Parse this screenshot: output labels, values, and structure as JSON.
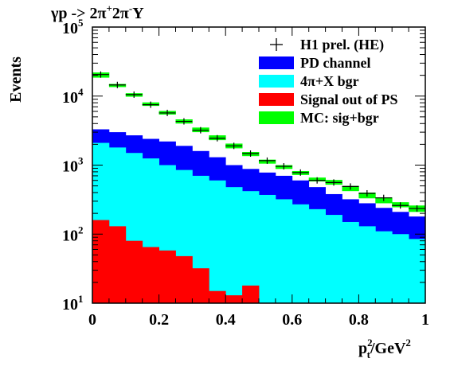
{
  "chart_data": {
    "type": "histogram",
    "title": "γp -> 2π⁺2π⁻Y",
    "title_parts": {
      "gp": "γp -> 2π",
      "sup1": "+",
      "mid": "2π",
      "sup2": "-",
      "end": "Y"
    },
    "xlabel": {
      "base": "p",
      "sub": "t",
      "sup": "2",
      "rest": "/GeV",
      "sup2": "2"
    },
    "ylabel": "Events",
    "xlim": [
      0,
      1
    ],
    "ylim": [
      10,
      100000
    ],
    "yscale": "log",
    "x_ticks": [
      "0",
      "0.2",
      "0.4",
      "0.6",
      "0.8",
      "1"
    ],
    "x_tick_values": [
      0,
      0.2,
      0.4,
      0.6,
      0.8,
      1
    ],
    "y_ticks": [
      {
        "base": "10",
        "exp": "1",
        "value": 10
      },
      {
        "base": "10",
        "exp": "2",
        "value": 100
      },
      {
        "base": "10",
        "exp": "3",
        "value": 1000
      },
      {
        "base": "10",
        "exp": "4",
        "value": 10000
      },
      {
        "base": "10",
        "exp": "5",
        "value": 100000
      }
    ],
    "bin_edges": [
      0,
      0.05,
      0.1,
      0.15,
      0.2,
      0.25,
      0.3,
      0.35,
      0.4,
      0.45,
      0.5,
      0.55,
      0.6,
      0.65,
      0.7,
      0.75,
      0.8,
      0.85,
      0.9,
      0.95,
      1.0
    ],
    "series": [
      {
        "name": "MC: sig+bgr",
        "color": "#00ff00",
        "kind": "band",
        "low": [
          18500,
          13500,
          9800,
          7200,
          5400,
          4000,
          3000,
          2300,
          1750,
          1350,
          1050,
          880,
          720,
          580,
          520,
          420,
          330,
          280,
          245,
          210
        ],
        "high": [
          22000,
          15000,
          11000,
          8100,
          6100,
          4600,
          3500,
          2700,
          2050,
          1550,
          1200,
          1000,
          820,
          660,
          610,
          500,
          400,
          340,
          290,
          260
        ]
      },
      {
        "name": "PD channel",
        "color": "#0000ff",
        "kind": "fill",
        "values": [
          3300,
          3000,
          2700,
          2400,
          2200,
          1900,
          1600,
          1300,
          1000,
          880,
          780,
          700,
          600,
          480,
          380,
          320,
          280,
          240,
          210,
          180
        ]
      },
      {
        "name": "4π+X bgr",
        "color": "#00ffff",
        "kind": "fill",
        "values": [
          2100,
          1800,
          1500,
          1250,
          1000,
          850,
          700,
          600,
          480,
          420,
          370,
          320,
          270,
          230,
          190,
          150,
          130,
          110,
          100,
          85
        ]
      },
      {
        "name": "Signal out of PS",
        "color": "#ff0000",
        "kind": "fill",
        "values": [
          160,
          130,
          80,
          65,
          58,
          48,
          32,
          15,
          13,
          18,
          10,
          0,
          0,
          0,
          0,
          0,
          0,
          0,
          0,
          0
        ]
      },
      {
        "name": "H1 prel. (HE)",
        "color": "#000000",
        "kind": "points",
        "values": [
          20500,
          14500,
          10500,
          7500,
          5700,
          4300,
          3200,
          2450,
          1900,
          1470,
          1160,
          960,
          780,
          600,
          560,
          490,
          390,
          335,
          260,
          235
        ]
      }
    ],
    "legend": {
      "placement": "top-right",
      "entries": [
        {
          "label": "H1 prel. (HE)",
          "kind": "marker",
          "color": "#000000"
        },
        {
          "label": "PD channel",
          "kind": "box",
          "color": "#0000ff"
        },
        {
          "label": "4π+X bgr",
          "kind": "box",
          "color": "#00ffff"
        },
        {
          "label": "Signal out of PS",
          "kind": "box",
          "color": "#ff0000"
        },
        {
          "label": "MC: sig+bgr",
          "kind": "box",
          "color": "#00ff00"
        }
      ]
    },
    "grid": false
  }
}
